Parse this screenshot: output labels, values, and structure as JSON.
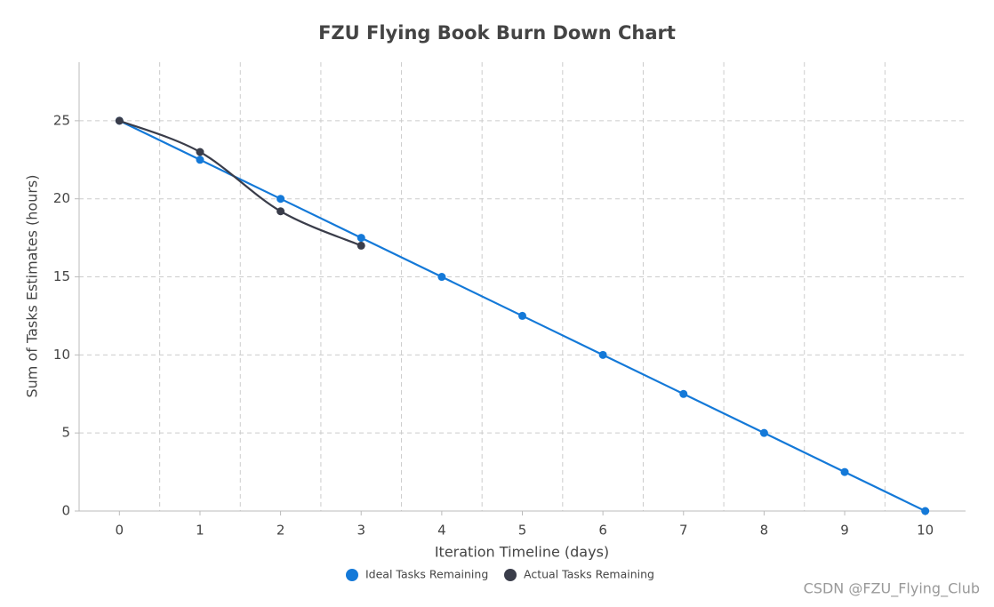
{
  "chart_data": {
    "type": "line",
    "title": "FZU Flying Book Burn Down Chart",
    "x_label": "Iteration Timeline (days)",
    "y_label": "Sum of Tasks Estimates (hours)",
    "categories": [
      "0",
      "1",
      "2",
      "3",
      "4",
      "5",
      "6",
      "7",
      "8",
      "9",
      "10"
    ],
    "series": [
      {
        "name": "Ideal Tasks Remaining",
        "color": "#1479d8",
        "values": [
          25,
          22.5,
          20,
          17.5,
          15,
          12.5,
          10,
          7.5,
          5,
          2.5,
          0
        ]
      },
      {
        "name": "Actual Tasks Remaining",
        "color": "#3a3d4a",
        "values": [
          25,
          23,
          19.2,
          17,
          null,
          null,
          null,
          null,
          null,
          null,
          null
        ]
      }
    ],
    "ylim": [
      0,
      28.75
    ],
    "yticks": [
      0,
      5,
      10,
      15,
      20,
      25
    ],
    "grid": true,
    "legend": "bottom",
    "watermark": "CSDN @FZU_Flying_Club"
  }
}
